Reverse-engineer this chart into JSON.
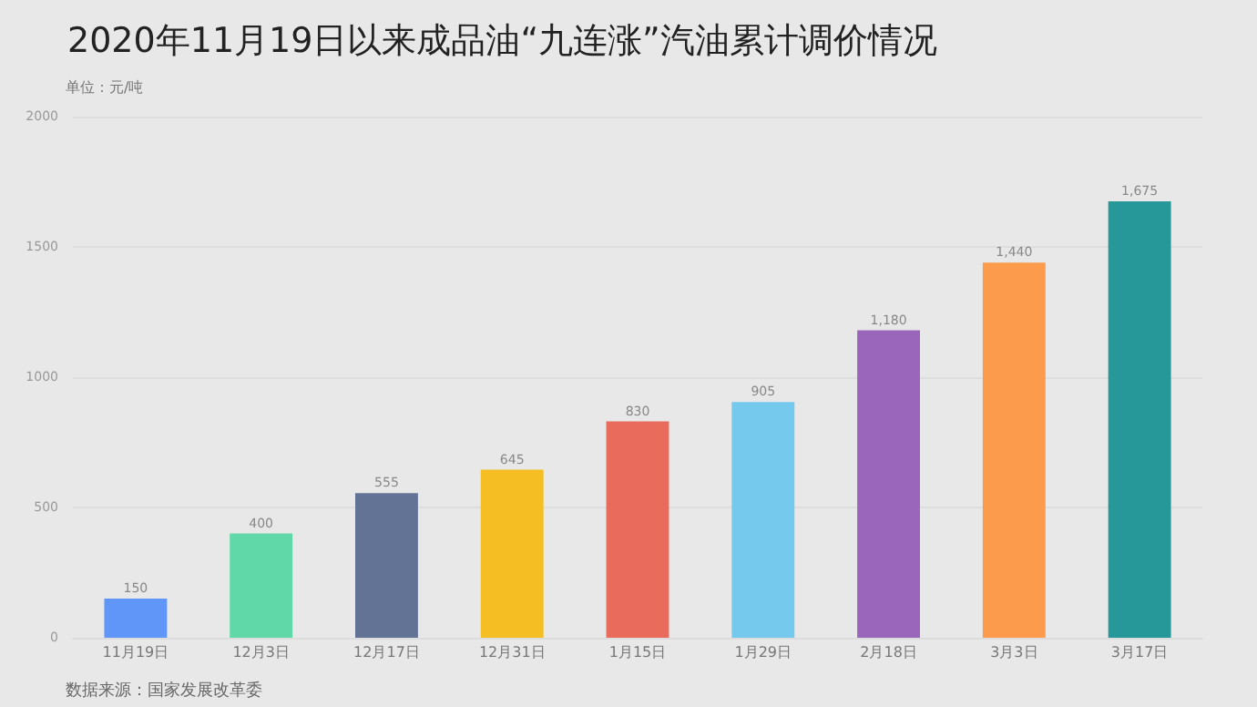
{
  "chart_data": {
    "type": "bar",
    "title": "2020年11月19日以来成品油“九连涨”汽油累计调价情况",
    "ylabel": "单位：元/吨",
    "annotations": [
      "数据来源：国家发展改革委"
    ],
    "categories": [
      "11月19日",
      "12月3日",
      "12月17日",
      "12月31日",
      "1月15日",
      "1月29日",
      "2月18日",
      "3月3日",
      "3月17日"
    ],
    "values": [
      150,
      400,
      555,
      645,
      830,
      905,
      1180,
      1440,
      1675
    ],
    "value_labels": [
      "150",
      "400",
      "555",
      "645",
      "830",
      "905",
      "1,180",
      "1,440",
      "1,675"
    ],
    "colors": [
      "#6096f7",
      "#60d8a8",
      "#627395",
      "#f5be22",
      "#e96b5c",
      "#74c9ed",
      "#9966bb",
      "#fd9b4c",
      "#27989a"
    ],
    "ylim": [
      0,
      2000
    ],
    "yticks": [
      0,
      500,
      1000,
      1500,
      2000
    ],
    "grid": "y"
  }
}
